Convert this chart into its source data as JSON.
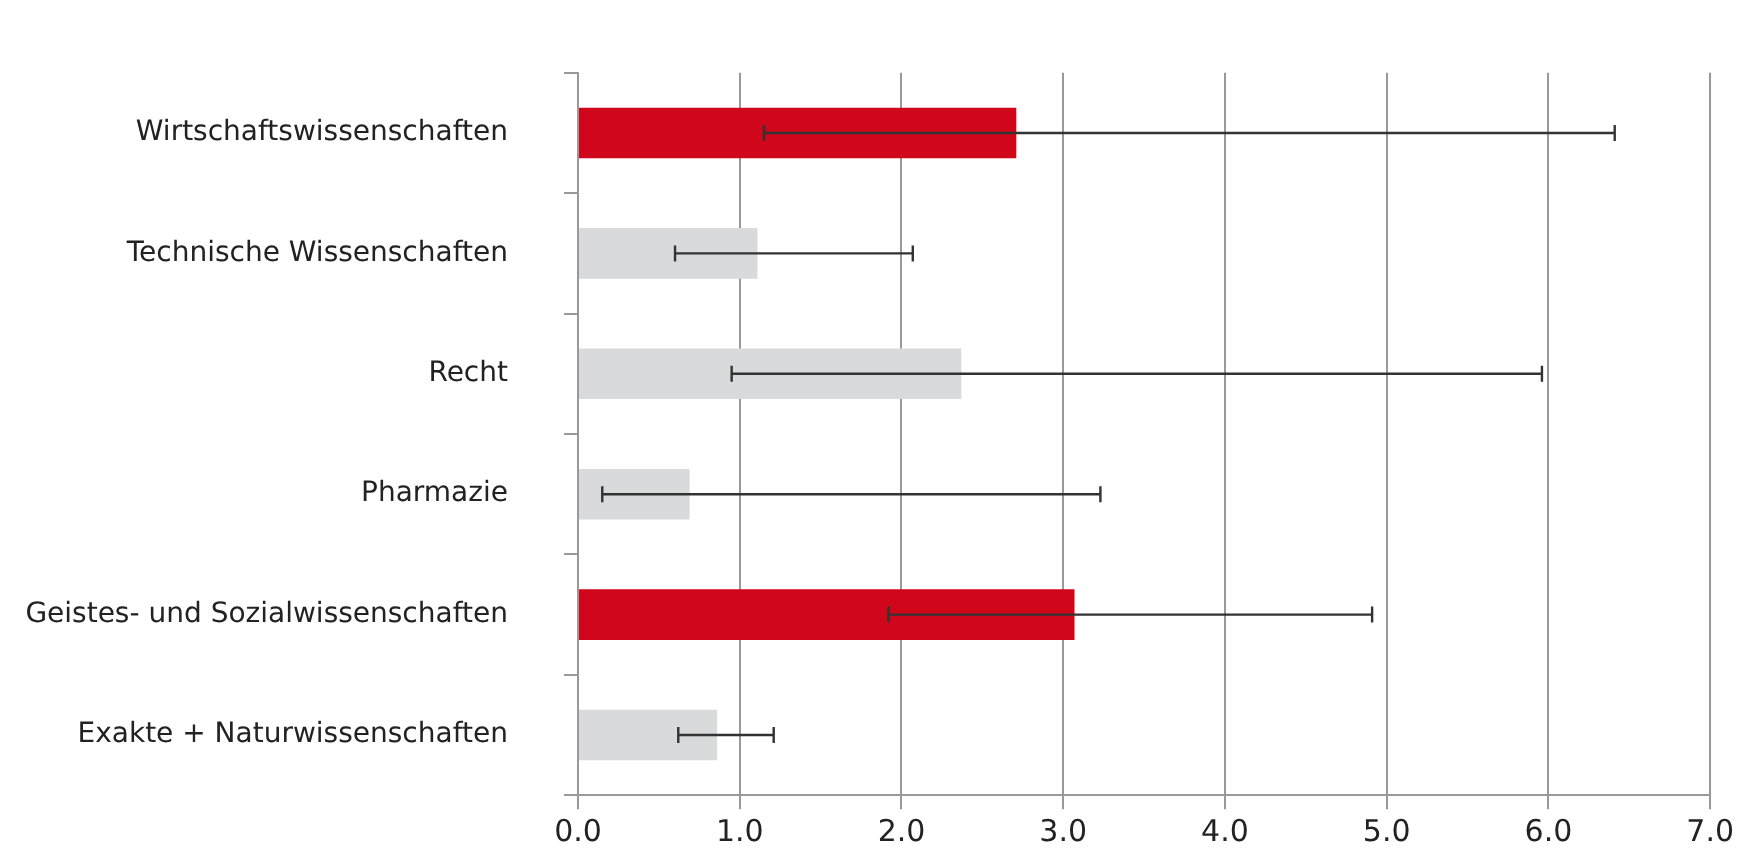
{
  "chart_data": {
    "type": "bar",
    "orientation": "horizontal",
    "categories": [
      "Wirtschaftswissenschaften",
      "Technische Wissenschaften",
      "Recht",
      "Pharmazie",
      "Geistes- und Sozialwissenschaften",
      "Exakte + Naturwissenschaften"
    ],
    "values": [
      2.71,
      1.11,
      2.37,
      0.69,
      3.07,
      0.86
    ],
    "colors": [
      "#d0061b",
      "#d9dadb",
      "#d9dadb",
      "#d9dadb",
      "#d0061b",
      "#d9dadb"
    ],
    "errors": [
      [
        1.15,
        6.41
      ],
      [
        0.6,
        2.07
      ],
      [
        0.95,
        5.96
      ],
      [
        0.15,
        3.23
      ],
      [
        1.92,
        4.91
      ],
      [
        0.62,
        1.21
      ]
    ],
    "xlim": [
      0,
      7
    ],
    "xticks": [
      {
        "value": 0,
        "label": "0.0"
      },
      {
        "value": 1,
        "label": "1.0"
      },
      {
        "value": 2,
        "label": "2.0"
      },
      {
        "value": 3,
        "label": "3.0"
      },
      {
        "value": 4,
        "label": "4.0"
      },
      {
        "value": 5,
        "label": "5.0"
      },
      {
        "value": 6,
        "label": "6.0"
      },
      {
        "value": 7,
        "label": "7.0"
      }
    ],
    "grid": "x",
    "legend": false
  }
}
